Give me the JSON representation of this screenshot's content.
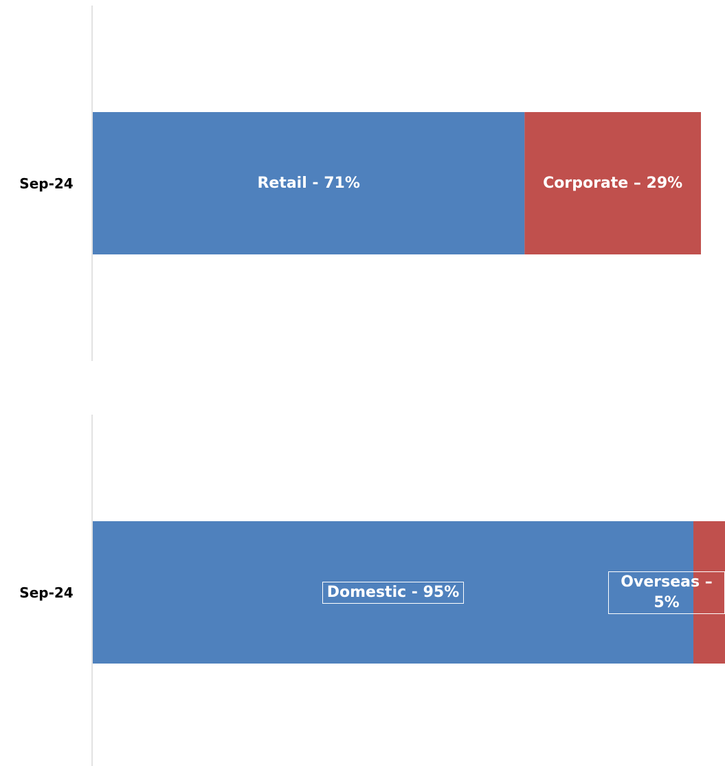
{
  "chart_data": [
    {
      "type": "bar",
      "orientation": "horizontal",
      "stacked": true,
      "categories": [
        "Sep-24"
      ],
      "xlim": [
        0,
        100
      ],
      "series": [
        {
          "color": "#4f81bd",
          "values": [
            71
          ],
          "value_labels": [
            "Retail - 71%"
          ]
        },
        {
          "color": "#c0504d",
          "values": [
            29
          ],
          "value_labels": [
            "Corporate – 29%"
          ]
        }
      ]
    },
    {
      "type": "bar",
      "orientation": "horizontal",
      "stacked": true,
      "categories": [
        "Sep-24"
      ],
      "xlim": [
        0,
        100
      ],
      "series": [
        {
          "color": "#4f81bd",
          "values": [
            95
          ],
          "value_labels": [
            "Domestic - 95%"
          ]
        },
        {
          "color": "#c0504d",
          "values": [
            5
          ],
          "value_labels": [
            "Overseas – 5%"
          ]
        }
      ]
    }
  ]
}
